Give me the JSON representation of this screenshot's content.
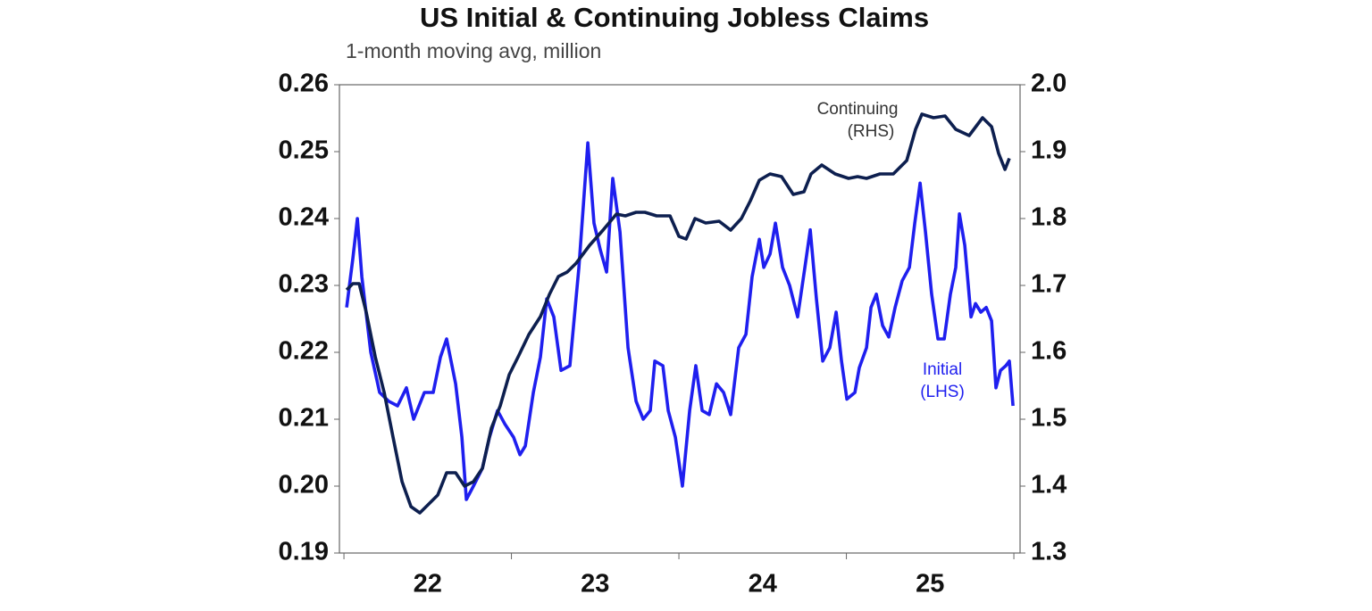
{
  "chart_data": {
    "type": "line",
    "title": "US Initial & Continuing Jobless Claims",
    "subtitle": "1-month moving avg, million",
    "xlim": [
      2021.973,
      2026.037
    ],
    "xticks": [
      {
        "value": 2022.5,
        "label": "22"
      },
      {
        "value": 2023.5,
        "label": "23"
      },
      {
        "value": 2024.5,
        "label": "24"
      },
      {
        "value": 2025.5,
        "label": "25"
      }
    ],
    "xminorticks": [
      2022,
      2023,
      2024,
      2025,
      2026
    ],
    "ylim": [
      0.19,
      0.26
    ],
    "yticks": [
      0.19,
      {
        "value": 0.2,
        "label": "0.20"
      },
      0.21,
      0.22,
      0.23,
      0.24,
      0.25,
      0.26
    ],
    "y2lim": [
      1.3,
      2.0
    ],
    "y2ticks": [
      1.3,
      1.4,
      1.5,
      1.6,
      1.7,
      1.8,
      1.9,
      {
        "value": 2.0,
        "label": "2.0"
      }
    ],
    "grid": false,
    "series": [
      {
        "name": "Initial",
        "note": "(LHS)",
        "color": "#1f1fef",
        "axis": "y",
        "x": [
          2022.016,
          2022.053,
          2022.08,
          2022.107,
          2022.16,
          2022.213,
          2022.267,
          2022.32,
          2022.373,
          2022.416,
          2022.48,
          2022.533,
          2022.576,
          2022.613,
          2022.667,
          2022.704,
          2022.731,
          2022.773,
          2022.827,
          2022.869,
          2022.917,
          2022.96,
          2023.013,
          2023.051,
          2023.083,
          2023.131,
          2023.173,
          2023.211,
          2023.253,
          2023.296,
          2023.349,
          2023.403,
          2023.456,
          2023.493,
          2023.531,
          2023.568,
          2023.605,
          2023.648,
          2023.696,
          2023.744,
          2023.787,
          2023.829,
          2023.856,
          2023.904,
          2023.936,
          2023.979,
          2024.021,
          2024.064,
          2024.101,
          2024.139,
          2024.181,
          2024.224,
          2024.267,
          2024.309,
          2024.357,
          2024.4,
          2024.437,
          2024.48,
          2024.507,
          2024.544,
          2024.576,
          2024.619,
          2024.661,
          2024.709,
          2024.752,
          2024.784,
          2024.821,
          2024.859,
          2024.901,
          2024.939,
          2024.971,
          2025.003,
          2025.051,
          2025.077,
          2025.12,
          2025.147,
          2025.179,
          2025.216,
          2025.253,
          2025.291,
          2025.333,
          2025.376,
          2025.408,
          2025.44,
          2025.472,
          2025.509,
          2025.547,
          2025.584,
          2025.621,
          2025.653,
          2025.675,
          2025.707,
          2025.744,
          2025.771,
          2025.803,
          2025.835,
          2025.867,
          2025.893,
          2025.92,
          2025.952,
          2025.973,
          2025.995
        ],
        "values": [
          0.2267,
          0.234,
          0.24,
          0.2313,
          0.22,
          0.214,
          0.2127,
          0.212,
          0.2147,
          0.21,
          0.214,
          0.214,
          0.2193,
          0.222,
          0.2153,
          0.2073,
          0.198,
          0.2,
          0.2027,
          0.2073,
          0.2113,
          0.2093,
          0.2073,
          0.2047,
          0.206,
          0.214,
          0.2193,
          0.228,
          0.2253,
          0.2173,
          0.218,
          0.2327,
          0.2513,
          0.2393,
          0.2353,
          0.232,
          0.246,
          0.238,
          0.2207,
          0.2127,
          0.21,
          0.2113,
          0.2187,
          0.218,
          0.2113,
          0.2073,
          0.2,
          0.2113,
          0.218,
          0.2113,
          0.2107,
          0.2153,
          0.214,
          0.2107,
          0.2207,
          0.2227,
          0.2313,
          0.2369,
          0.2327,
          0.2347,
          0.2393,
          0.2327,
          0.23,
          0.2253,
          0.2327,
          0.2383,
          0.228,
          0.2187,
          0.2207,
          0.226,
          0.2187,
          0.213,
          0.214,
          0.2177,
          0.2207,
          0.2267,
          0.2287,
          0.224,
          0.2223,
          0.2267,
          0.2307,
          0.2327,
          0.2393,
          0.2453,
          0.238,
          0.2287,
          0.222,
          0.222,
          0.2287,
          0.2327,
          0.2407,
          0.236,
          0.2253,
          0.2273,
          0.226,
          0.2267,
          0.2247,
          0.2147,
          0.2173,
          0.218,
          0.2187,
          0.212
        ]
      },
      {
        "name": "Continuing",
        "note": "(RHS)",
        "color": "#0d1f4f",
        "axis": "y2",
        "x": [
          2022.016,
          2022.053,
          2022.091,
          2022.133,
          2022.187,
          2022.24,
          2022.293,
          2022.347,
          2022.4,
          2022.453,
          2022.507,
          2022.56,
          2022.613,
          2022.667,
          2022.72,
          2022.773,
          2022.827,
          2022.88,
          2022.933,
          2022.987,
          2023.04,
          2023.104,
          2023.173,
          2023.227,
          2023.28,
          2023.333,
          2023.387,
          2023.467,
          2023.547,
          2023.627,
          2023.68,
          2023.744,
          2023.797,
          2023.867,
          2023.947,
          2024.0,
          2024.043,
          2024.096,
          2024.16,
          2024.24,
          2024.309,
          2024.373,
          2024.427,
          2024.48,
          2024.544,
          2024.613,
          2024.683,
          2024.747,
          2024.789,
          2024.853,
          2024.933,
          2025.013,
          2025.067,
          2025.12,
          2025.2,
          2025.28,
          2025.36,
          2025.413,
          2025.451,
          2025.52,
          2025.589,
          2025.653,
          2025.733,
          2025.813,
          2025.867,
          2025.909,
          2025.947,
          2025.973
        ],
        "values": [
          1.6933,
          1.7027,
          1.7027,
          1.66,
          1.5933,
          1.54,
          1.4733,
          1.4067,
          1.3693,
          1.36,
          1.3733,
          1.3867,
          1.42,
          1.42,
          1.4,
          1.4067,
          1.4267,
          1.4867,
          1.52,
          1.5667,
          1.5933,
          1.6267,
          1.6533,
          1.6867,
          1.7133,
          1.72,
          1.7333,
          1.76,
          1.7827,
          1.8067,
          1.804,
          1.8093,
          1.8093,
          1.804,
          1.804,
          1.7733,
          1.7693,
          1.8,
          1.7933,
          1.796,
          1.7827,
          1.8,
          1.8267,
          1.8573,
          1.8667,
          1.8627,
          1.836,
          1.84,
          1.8667,
          1.88,
          1.8667,
          1.86,
          1.8627,
          1.86,
          1.8667,
          1.8667,
          1.8867,
          1.9333,
          1.956,
          1.9507,
          1.9533,
          1.9333,
          1.924,
          1.9507,
          1.9373,
          1.8973,
          1.8733,
          1.89
        ]
      }
    ]
  }
}
